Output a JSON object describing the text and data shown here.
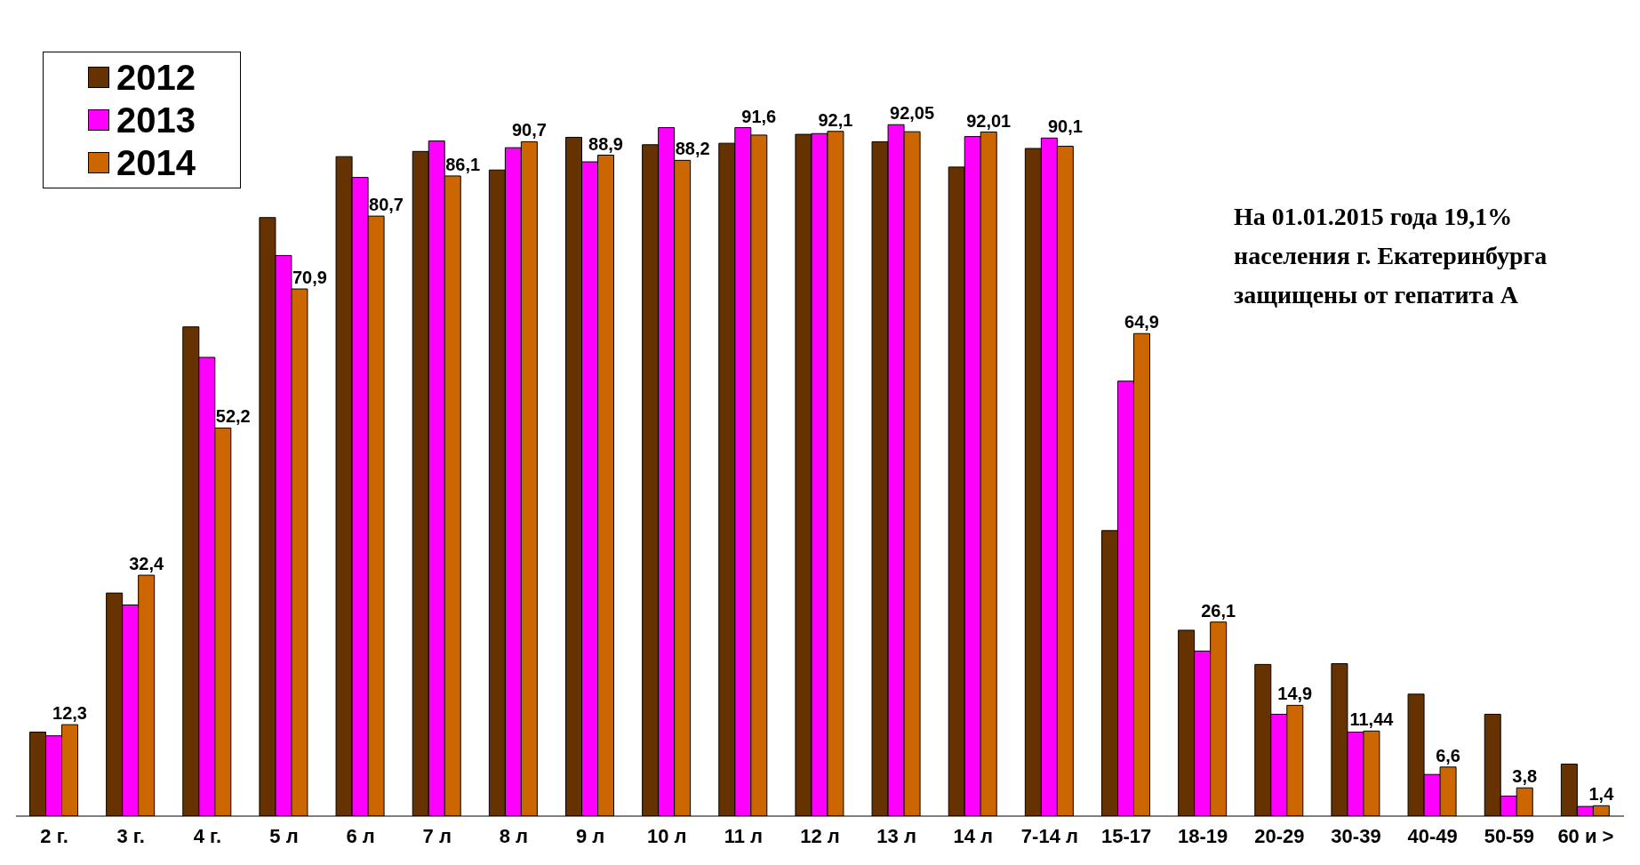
{
  "chart_data": {
    "type": "bar",
    "categories": [
      "2 г.",
      "3 г.",
      "4 г.",
      "5 л",
      "6 л",
      "7 л",
      "8 л",
      "9 л",
      "10 л",
      "11 л",
      "12 л",
      "13 л",
      "14 л",
      "7-14 л",
      "15-17",
      "18-19",
      "20-29",
      "30-39",
      "40-49",
      "50-59",
      "60 и >"
    ],
    "series": [
      {
        "name": "2012",
        "color": "#663300",
        "values": [
          11.3,
          30.0,
          65.8,
          80.5,
          88.7,
          89.4,
          86.9,
          91.3,
          90.3,
          90.5,
          91.7,
          90.7,
          87.3,
          89.8,
          38.4,
          25.0,
          20.4,
          20.5,
          16.4,
          13.7,
          7.0
        ]
      },
      {
        "name": "2013",
        "color": "#ff00ff",
        "values": [
          10.8,
          28.4,
          61.7,
          75.4,
          85.9,
          90.8,
          89.9,
          88.0,
          92.6,
          92.6,
          91.8,
          93.0,
          91.4,
          91.2,
          58.5,
          22.2,
          13.7,
          11.3,
          5.6,
          2.7,
          1.3
        ]
      },
      {
        "name": "2014",
        "color": "#cc6600",
        "values": [
          12.3,
          32.4,
          52.2,
          70.9,
          80.7,
          86.1,
          90.7,
          88.9,
          88.2,
          91.6,
          92.1,
          92.05,
          92.01,
          90.1,
          64.9,
          26.1,
          14.9,
          11.44,
          6.6,
          3.8,
          1.4
        ],
        "value_labels": [
          "12,3",
          "32,4",
          "52,2",
          "70,9",
          "80,7",
          "86,1",
          "90,7",
          "88,9",
          "88,2",
          "91,6",
          "92,1",
          "92,05",
          "92,01",
          "90,1",
          "64,9",
          "26,1",
          "14,9",
          "11,44",
          "6,6",
          "3,8",
          "1,4"
        ]
      }
    ],
    "annotations": [
      "На 01.01.2015 года 19,1%",
      "населения г. Екатеринбурга",
      "защищены от гепатита А"
    ],
    "legend": "top left"
  }
}
